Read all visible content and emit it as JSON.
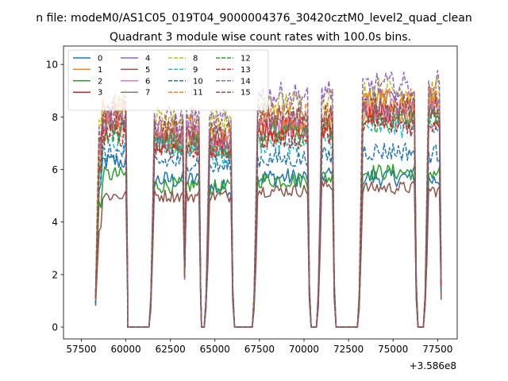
{
  "chart_data": {
    "type": "line",
    "suptitle": "n file: modeM0/AS1C05_019T04_9000004376_30420cztM0_level2_quad_clean",
    "title": "Quadrant 3 module wise count rates with 100.0s bins.",
    "xlabel": "",
    "ylabel": "",
    "x_offset_label": "+3.586e8",
    "xlim": [
      56500,
      78600
    ],
    "ylim": [
      -0.45,
      10.7
    ],
    "xticks": [
      57500,
      60000,
      62500,
      65000,
      67500,
      70000,
      72500,
      75000,
      77500
    ],
    "xtick_labels": [
      "57500",
      "60000",
      "62500",
      "65000",
      "67500",
      "70000",
      "72500",
      "75000",
      "77500"
    ],
    "yticks": [
      0,
      2,
      4,
      6,
      8,
      10
    ],
    "ytick_labels": [
      "0",
      "2",
      "4",
      "6",
      "8",
      "10"
    ],
    "grid": false,
    "legend_placement": "upper-left",
    "legend_columns": 4,
    "segments": [
      [
        58300,
        60100
      ],
      [
        61400,
        64200
      ],
      [
        64500,
        66000
      ],
      [
        67200,
        70300
      ],
      [
        70800,
        71700
      ],
      [
        73100,
        76300
      ],
      [
        76800,
        77700
      ]
    ],
    "gap_lows": [
      [
        60100,
        61300
      ],
      [
        64250,
        64400
      ],
      [
        66100,
        67100
      ],
      [
        70400,
        70700
      ],
      [
        71800,
        73000
      ],
      [
        76400,
        76700
      ]
    ],
    "series": [
      {
        "name": "0",
        "color": "#1f77b4",
        "dash": "solid",
        "values": [
          6.3,
          5.6,
          5.3,
          5.7,
          5.8,
          5.7,
          5.6
        ]
      },
      {
        "name": "1",
        "color": "#ff7f0e",
        "dash": "solid",
        "values": [
          7.8,
          7.2,
          7.0,
          7.4,
          7.6,
          8.2,
          8.4
        ]
      },
      {
        "name": "2",
        "color": "#2ca02c",
        "dash": "solid",
        "values": [
          5.8,
          5.4,
          5.3,
          5.6,
          5.7,
          5.9,
          5.9
        ]
      },
      {
        "name": "3",
        "color": "#d62728",
        "dash": "solid",
        "values": [
          7.9,
          7.1,
          7.0,
          7.6,
          7.7,
          8.1,
          8.2
        ]
      },
      {
        "name": "4",
        "color": "#9467bd",
        "dash": "solid",
        "values": [
          7.8,
          7.3,
          7.2,
          7.9,
          8.1,
          8.6,
          8.8
        ]
      },
      {
        "name": "5",
        "color": "#8c564b",
        "dash": "solid",
        "values": [
          5.0,
          5.0,
          5.0,
          5.2,
          5.4,
          5.3,
          5.2
        ]
      },
      {
        "name": "6",
        "color": "#e377c2",
        "dash": "solid",
        "values": [
          7.9,
          7.3,
          7.1,
          7.7,
          7.8,
          8.3,
          8.5
        ]
      },
      {
        "name": "7",
        "color": "#7f7f7f",
        "dash": "solid",
        "values": [
          7.6,
          7.0,
          6.9,
          7.5,
          7.6,
          8.0,
          8.1
        ]
      },
      {
        "name": "8",
        "color": "#bcbd22",
        "dash": "dashed",
        "values": [
          8.6,
          7.9,
          7.8,
          8.5,
          8.7,
          9.0,
          9.0
        ]
      },
      {
        "name": "9",
        "color": "#17becf",
        "dash": "dashed",
        "values": [
          7.0,
          6.8,
          6.5,
          7.0,
          7.2,
          7.6,
          7.8
        ]
      },
      {
        "name": "10",
        "color": "#1f77b4",
        "dash": "dashed",
        "values": [
          6.6,
          6.3,
          6.1,
          6.4,
          6.5,
          6.7,
          6.6
        ]
      },
      {
        "name": "11",
        "color": "#ff7f0e",
        "dash": "dashed",
        "values": [
          8.2,
          7.6,
          7.5,
          8.1,
          8.2,
          8.6,
          8.7
        ]
      },
      {
        "name": "12",
        "color": "#2ca02c",
        "dash": "dashed",
        "values": [
          7.4,
          7.0,
          6.8,
          7.3,
          7.4,
          7.8,
          7.9
        ]
      },
      {
        "name": "13",
        "color": "#d62728",
        "dash": "dashed",
        "values": [
          7.3,
          6.8,
          6.7,
          7.2,
          7.3,
          7.7,
          7.8
        ]
      },
      {
        "name": "14",
        "color": "#9467bd",
        "dash": "dashed",
        "values": [
          8.4,
          7.9,
          7.8,
          8.8,
          9.0,
          9.2,
          9.3
        ]
      },
      {
        "name": "15",
        "color": "#8c564b",
        "dash": "dashed",
        "values": [
          8.0,
          7.5,
          7.4,
          8.0,
          8.1,
          8.4,
          8.4
        ]
      }
    ]
  }
}
